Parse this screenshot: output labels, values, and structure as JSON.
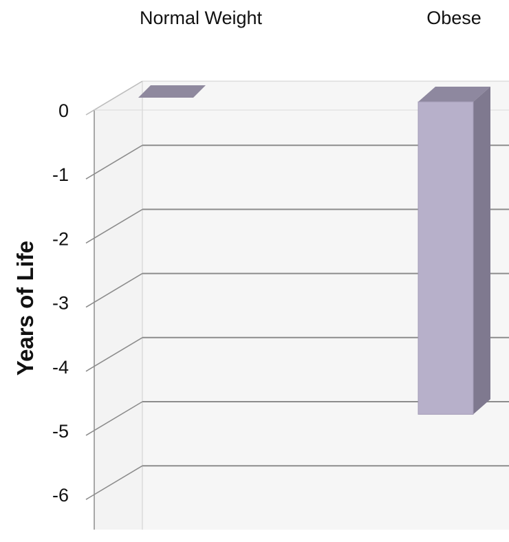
{
  "chart_data": {
    "type": "bar",
    "three_d": true,
    "categories": [
      "Normal Weight",
      "Obese"
    ],
    "values": [
      0,
      -4.8
    ],
    "title": "",
    "xlabel": "",
    "ylabel": "Years of Life",
    "ylim": [
      -6,
      0
    ],
    "yticks": [
      0,
      -1,
      -2,
      -3,
      -4,
      -5,
      -6
    ],
    "grid": true,
    "legend": "none",
    "category_axis_position": "top",
    "colors": {
      "bar_front": "#b7b0ca",
      "bar_top": "#8e889f",
      "bar_side": "#7f798f",
      "zero_marker": "#8f899e",
      "grid": "#8c8c8c",
      "wall": "#f6f6f6",
      "text": "#111111"
    }
  }
}
